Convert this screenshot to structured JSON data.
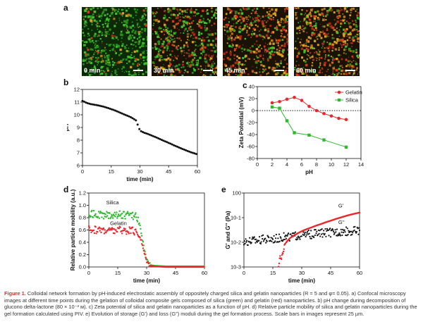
{
  "panels": {
    "a": {
      "label": "a",
      "images": [
        {
          "time": "0 min",
          "green": 0.85
        },
        {
          "time": "30 min",
          "green": 0.5
        },
        {
          "time": "45 min",
          "green": 0.25
        },
        {
          "time": "60 min",
          "green": 0.22
        }
      ]
    },
    "b": {
      "label": "b"
    },
    "c": {
      "label": "c"
    },
    "d": {
      "label": "d"
    },
    "e": {
      "label": "e"
    }
  },
  "chart_data": [
    {
      "panel": "b",
      "type": "scatter",
      "xlabel": "time (min)",
      "ylabel": "pH",
      "xlim": [
        0,
        60
      ],
      "ylim": [
        6,
        12
      ],
      "xticks": [
        "0",
        "15",
        "30",
        "45",
        "60"
      ],
      "yticks": [
        "6",
        "7",
        "8",
        "9",
        "10",
        "11",
        "12"
      ],
      "series": [
        {
          "color": "#111111",
          "x": [
            0,
            2,
            4,
            6,
            8,
            10,
            12,
            14,
            16,
            18,
            20,
            22,
            24,
            26,
            28,
            30,
            32,
            34,
            36,
            38,
            40,
            42,
            44,
            46,
            48,
            50,
            52,
            54,
            56,
            58,
            60
          ],
          "y": [
            11.1,
            10.95,
            10.85,
            10.8,
            10.75,
            10.68,
            10.6,
            10.5,
            10.4,
            10.28,
            10.15,
            10.02,
            9.9,
            9.75,
            9.55,
            8.75,
            8.6,
            8.5,
            8.38,
            8.25,
            8.12,
            7.98,
            7.85,
            7.72,
            7.58,
            7.45,
            7.32,
            7.2,
            7.08,
            6.98,
            6.88
          ]
        }
      ]
    },
    {
      "panel": "c",
      "type": "line",
      "xlabel": "pH",
      "ylabel": "Zeta Potential (mV)",
      "xlim": [
        0,
        14
      ],
      "ylim": [
        -80,
        40
      ],
      "xticks": [
        "0",
        "2",
        "4",
        "6",
        "8",
        "10",
        "12",
        "14"
      ],
      "yticks": [
        "-80",
        "-60",
        "-40",
        "-20",
        "0",
        "20",
        "40"
      ],
      "legend": "top-right",
      "zero_line": "dotted",
      "series": [
        {
          "name": "Gelatin",
          "color": "#e8282b",
          "x": [
            2,
            3,
            4,
            5,
            6,
            7,
            8,
            9,
            10,
            11,
            12
          ],
          "y": [
            13,
            15,
            19,
            22,
            17,
            7,
            0,
            -5,
            -9,
            -13,
            -15
          ]
        },
        {
          "name": "Silica",
          "color": "#2eb82e",
          "x": [
            2,
            3,
            4,
            5,
            7,
            9,
            12
          ],
          "y": [
            6,
            4,
            -17,
            -37,
            -41,
            -49,
            -61
          ]
        }
      ]
    },
    {
      "panel": "d",
      "type": "scatter",
      "xlabel": "time (min)",
      "ylabel": "Relative particle mobility (a.u.)",
      "xlim": [
        0,
        60
      ],
      "ylim": [
        0,
        1.2
      ],
      "xticks": [
        "0",
        "15",
        "30",
        "45",
        "60"
      ],
      "yticks": [
        "0.0",
        "0.2",
        "0.4",
        "0.6",
        "0.8",
        "1.0",
        "1.2"
      ],
      "annotations": [
        "Silica",
        "Gelatin"
      ],
      "series": [
        {
          "name": "Silica",
          "color": "#2eb82e",
          "x": [
            0,
            4,
            8,
            12,
            16,
            20,
            24,
            26,
            27,
            28,
            29,
            30,
            31,
            32,
            34,
            40,
            50,
            60
          ],
          "y": [
            0.86,
            0.85,
            0.84,
            0.84,
            0.85,
            0.84,
            0.83,
            0.75,
            0.6,
            0.42,
            0.25,
            0.12,
            0.06,
            0.03,
            0.02,
            0.01,
            0.01,
            0.01
          ]
        },
        {
          "name": "Gelatin",
          "color": "#e8282b",
          "x": [
            0,
            4,
            8,
            12,
            16,
            20,
            24,
            26,
            27,
            28,
            29,
            30,
            31,
            32,
            34,
            40,
            50,
            60
          ],
          "y": [
            0.61,
            0.6,
            0.6,
            0.59,
            0.6,
            0.59,
            0.58,
            0.52,
            0.45,
            0.32,
            0.2,
            0.1,
            0.05,
            0.02,
            0.01,
            0.0,
            0.0,
            0.0
          ]
        }
      ]
    },
    {
      "panel": "e",
      "type": "scatter",
      "xlabel": "time (min)",
      "ylabel": "G' and G'' (Pa)",
      "xlim": [
        0,
        60
      ],
      "ylog": [
        -3,
        0
      ],
      "xticks": [
        "0",
        "15",
        "30",
        "45",
        "60"
      ],
      "yticks": [
        "10-3",
        "10-2",
        "10-1",
        "100"
      ],
      "annotations": [
        "G'",
        "G''"
      ],
      "series": [
        {
          "name": "G'",
          "color": "#e8282b",
          "x": [
            18,
            19,
            20,
            21,
            22,
            24,
            27,
            30,
            35,
            40,
            45,
            50,
            55,
            60
          ],
          "y": [
            0.0011,
            0.002,
            0.004,
            0.007,
            0.01,
            0.015,
            0.021,
            0.028,
            0.04,
            0.055,
            0.075,
            0.1,
            0.13,
            0.16
          ]
        },
        {
          "name": "G''",
          "color": "#111111",
          "x": [
            0,
            5,
            10,
            15,
            20,
            25,
            30,
            35,
            40,
            45,
            50,
            55,
            60
          ],
          "y": [
            0.011,
            0.012,
            0.013,
            0.014,
            0.016,
            0.017,
            0.019,
            0.021,
            0.023,
            0.025,
            0.027,
            0.029,
            0.031
          ]
        }
      ]
    }
  ],
  "caption": {
    "label": "Figure 1.",
    "text": "Colloidal network formation by pH-induced electrostatic assembly of oppositely charged silica and gelatin nanoparticles (R = 5 and φ= 0.05). a) Confocal microscopy images at different time points during the gelation of colloidal composite gels composed of silica (green) and gelatin (red) nanoparticles. b) pH change during decomposition of glucono delta-lactone (80 × 10⁻³ м). c) Zeta potential of silica and gelatin nanoparticles as a function of pH. d) Relative particle mobility of silica and gelatin nanoparticles during the gel formation calculated using PIV. e) Evolution of storage (G′) and loss (G″) moduli during the gel formation process. Scale bars in images represent 25 µm."
  }
}
